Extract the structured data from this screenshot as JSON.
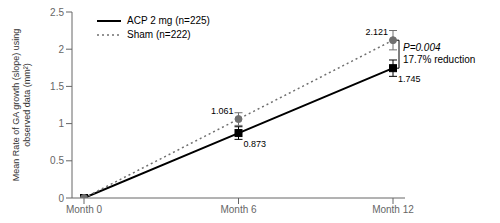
{
  "chart_data": {
    "type": "line",
    "categories": [
      "Month 0",
      "Month 6",
      "Month 12"
    ],
    "y_label": "Mean Rate of GA growth (slope) using\nobserved data (mm²)",
    "ylim": [
      0,
      2.5
    ],
    "yticks": [
      0,
      0.5,
      1,
      1.5,
      2,
      2.5
    ],
    "grid": false,
    "legend": "upper left",
    "data_labels": true,
    "series": [
      {
        "name": "ACP 2 mg (n=225)",
        "color": "#000000",
        "line_style": "solid",
        "marker": "square",
        "values": [
          0.0,
          0.873,
          1.745
        ],
        "errors": [
          0.0,
          0.085,
          0.11
        ],
        "value_labels": [
          null,
          "0.873",
          "1.745"
        ]
      },
      {
        "name": "Sham (n=222)",
        "color": "#707070",
        "line_style": "dotted",
        "marker": "circle",
        "values": [
          0.0,
          1.061,
          2.121
        ],
        "errors": [
          0.0,
          0.085,
          0.13
        ],
        "value_labels": [
          null,
          "1.061",
          "2.121"
        ]
      }
    ],
    "bracket": {
      "from": 1.745,
      "to": 2.121,
      "labels": [
        "P=0.004",
        "17.7% reduction"
      ]
    }
  }
}
